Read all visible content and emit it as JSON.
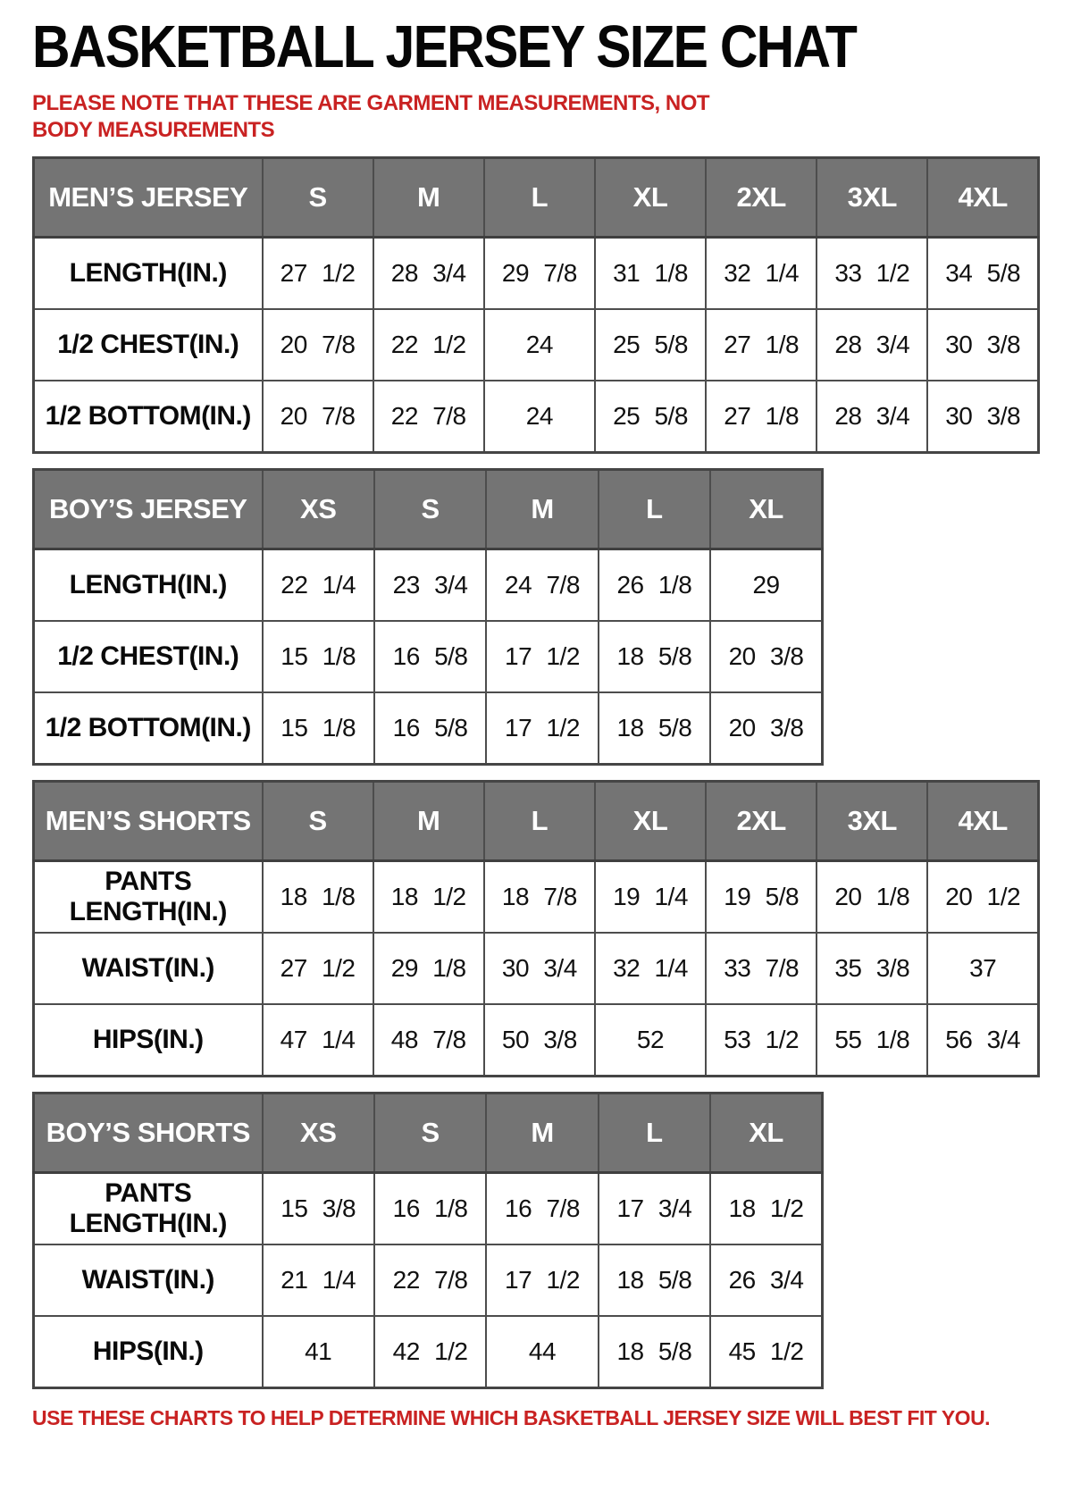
{
  "page": {
    "title": "BASKETBALL JERSEY SIZE CHAT",
    "note_top": "PLEASE NOTE THAT THESE ARE GARMENT MEASUREMENTS, NOT BODY MEASUREMENTS",
    "note_bottom": "USE THESE CHARTS TO HELP DETERMINE WHICH BASKETBALL JERSEY SIZE WILL BEST FIT YOU.",
    "accent_red": "#c92222",
    "header_gray": "#747474"
  },
  "tables": [
    {
      "id": "mens-jersey",
      "header": [
        "MEN’S JERSEY",
        "S",
        "M",
        "L",
        "XL",
        "2XL",
        "3XL",
        "4XL"
      ],
      "rows": [
        [
          "LENGTH(IN.)",
          "27 1/2",
          "28 3/4",
          "29 7/8",
          "31 1/8",
          "32 1/4",
          "33 1/2",
          "34 5/8"
        ],
        [
          "1/2 CHEST(IN.)",
          "20 7/8",
          "22 1/2",
          "24",
          "25 5/8",
          "27 1/8",
          "28 3/4",
          "30 3/8"
        ],
        [
          "1/2 BOTTOM(IN.)",
          "20 7/8",
          "22 7/8",
          "24",
          "25 5/8",
          "27 1/8",
          "28 3/4",
          "30 3/8"
        ]
      ]
    },
    {
      "id": "boys-jersey",
      "header": [
        "BOY’S JERSEY",
        "XS",
        "S",
        "M",
        "L",
        "XL"
      ],
      "rows": [
        [
          "LENGTH(IN.)",
          "22 1/4",
          "23 3/4",
          "24 7/8",
          "26 1/8",
          "29"
        ],
        [
          "1/2 CHEST(IN.)",
          "15 1/8",
          "16 5/8",
          "17 1/2",
          "18 5/8",
          "20 3/8"
        ],
        [
          "1/2 BOTTOM(IN.)",
          "15 1/8",
          "16 5/8",
          "17 1/2",
          "18 5/8",
          "20 3/8"
        ]
      ]
    },
    {
      "id": "mens-shorts",
      "header": [
        "MEN’S SHORTS",
        "S",
        "M",
        "L",
        "XL",
        "2XL",
        "3XL",
        "4XL"
      ],
      "rows": [
        [
          "PANTS LENGTH(IN.)",
          "18 1/8",
          "18 1/2",
          "18 7/8",
          "19 1/4",
          "19 5/8",
          "20 1/8",
          "20 1/2"
        ],
        [
          "WAIST(IN.)",
          "27 1/2",
          "29 1/8",
          "30 3/4",
          "32 1/4",
          "33 7/8",
          "35 3/8",
          "37"
        ],
        [
          "HIPS(IN.)",
          "47 1/4",
          "48 7/8",
          "50 3/8",
          "52",
          "53 1/2",
          "55 1/8",
          "56 3/4"
        ]
      ]
    },
    {
      "id": "boys-shorts",
      "header": [
        "BOY’S SHORTS",
        "XS",
        "S",
        "M",
        "L",
        "XL"
      ],
      "rows": [
        [
          "PANTS LENGTH(IN.)",
          "15 3/8",
          "16 1/8",
          "16 7/8",
          "17 3/4",
          "18 1/2"
        ],
        [
          "WAIST(IN.)",
          "21 1/4",
          "22 7/8",
          "17 1/2",
          "18 5/8",
          "26 3/4"
        ],
        [
          "HIPS(IN.)",
          "41",
          "42 1/2",
          "44",
          "18 5/8",
          "45 1/2"
        ]
      ]
    }
  ]
}
